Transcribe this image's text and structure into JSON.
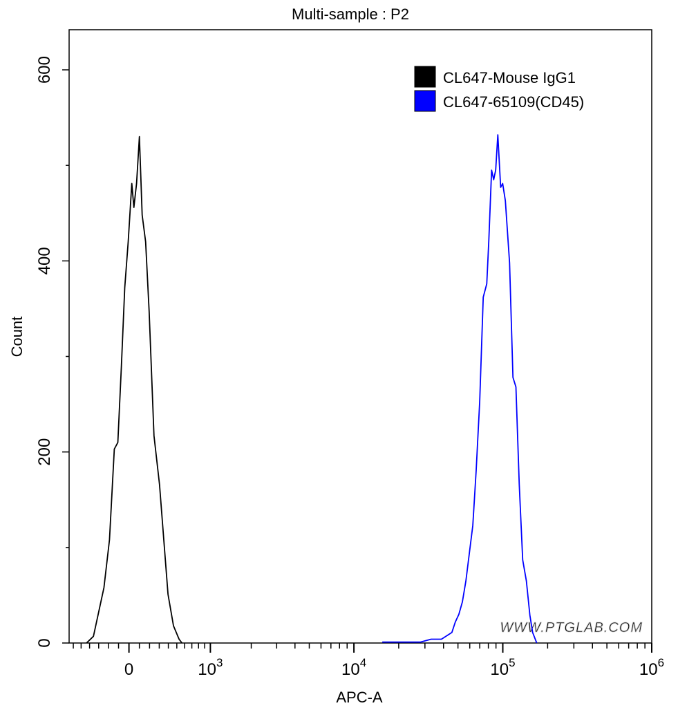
{
  "chart_data": {
    "type": "line",
    "title": "Multi-sample : P2",
    "xlabel": "APC-A",
    "ylabel": "Count",
    "x_scale": "biexponential",
    "xlim": [
      -657,
      1000000
    ],
    "ylim": [
      0,
      642
    ],
    "x_ticks": [
      {
        "value": 0,
        "label": "0",
        "exp": ""
      },
      {
        "value": 1000,
        "label": "10",
        "exp": "3"
      },
      {
        "value": 10000,
        "label": "10",
        "exp": "4"
      },
      {
        "value": 100000,
        "label": "10",
        "exp": "5"
      },
      {
        "value": 1000000,
        "label": "10",
        "exp": "6"
      }
    ],
    "y_ticks": [
      {
        "value": 0,
        "label": "0"
      },
      {
        "value": 200,
        "label": "200"
      },
      {
        "value": 400,
        "label": "400"
      },
      {
        "value": 600,
        "label": "600"
      }
    ],
    "grid": false,
    "legend_position": "top-right",
    "watermark": "WWW.PTGLAB.COM",
    "series": [
      {
        "name": "CL647-Mouse IgG1",
        "color": "#000000",
        "x": [
          -435,
          -357,
          -245,
          -189,
          -141,
          -107,
          -73,
          -40,
          -7,
          27,
          47,
          73,
          100,
          127,
          161,
          196,
          245,
          303,
          349,
          396,
          460,
          528,
          565
        ],
        "y": [
          0,
          7,
          58,
          108,
          203,
          210,
          289,
          372,
          420,
          481,
          456,
          481,
          530,
          448,
          420,
          347,
          217,
          166,
          108,
          51,
          18,
          4,
          0
        ]
      },
      {
        "name": "CL647-65109(CD45)",
        "color": "#0000ff",
        "x": [
          15500,
          20300,
          28060,
          32970,
          38700,
          45500,
          48000,
          50700,
          53500,
          56500,
          59600,
          62900,
          66300,
          70000,
          73900,
          78000,
          80500,
          84100,
          86800,
          89600,
          92600,
          96700,
          99800,
          104000,
          111000,
          117000,
          122500,
          129000,
          136000,
          144000,
          152000,
          158700,
          169000
        ],
        "y": [
          1,
          1,
          1,
          4,
          4,
          11,
          22,
          30,
          43,
          65,
          94,
          123,
          181,
          253,
          362,
          376,
          420,
          495,
          485,
          495,
          532,
          477,
          481,
          463,
          398,
          278,
          268,
          166,
          87,
          65,
          29,
          11,
          0
        ]
      }
    ]
  }
}
